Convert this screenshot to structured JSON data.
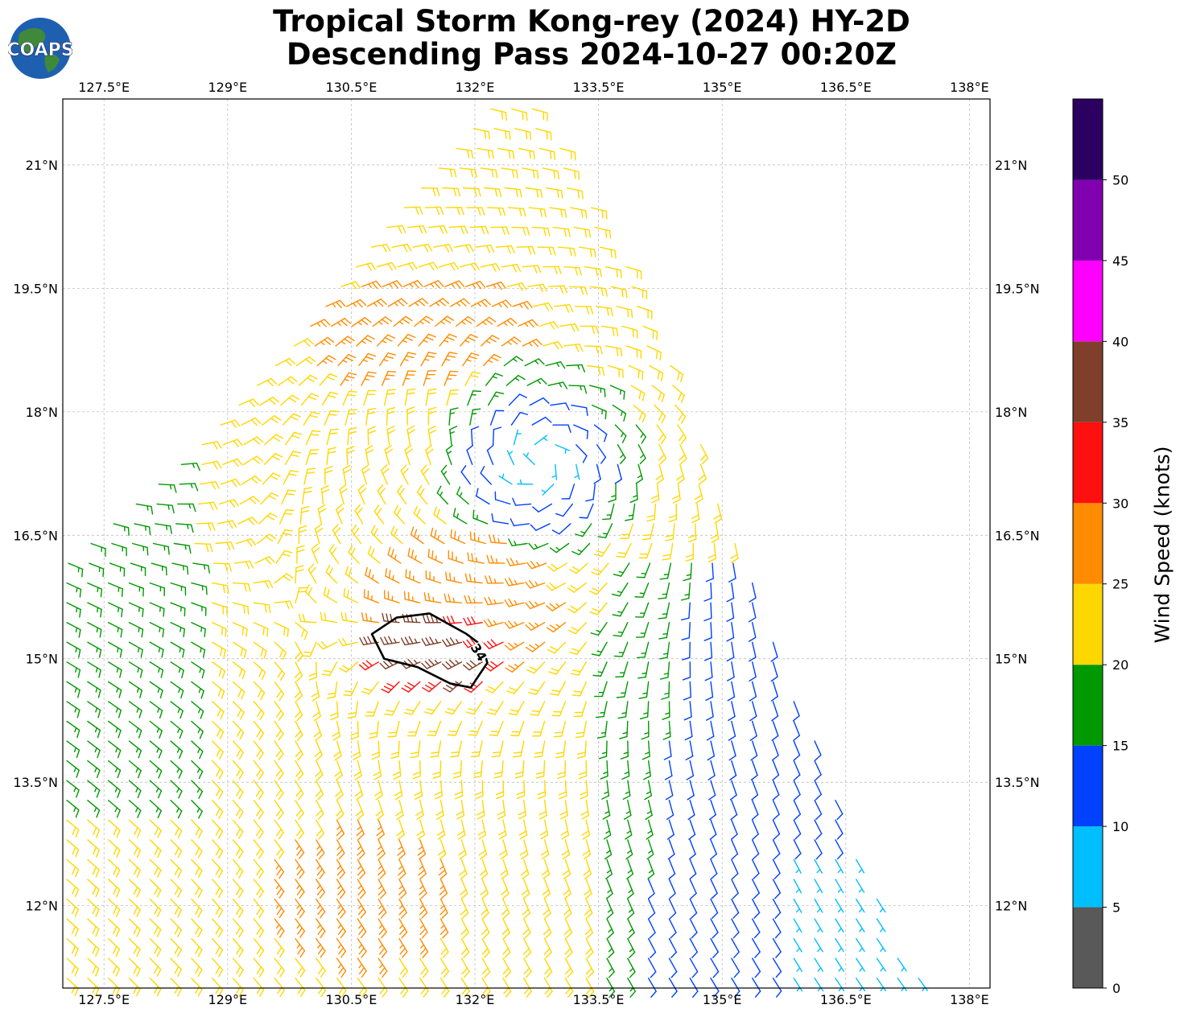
{
  "title": {
    "line1": "Tropical Storm Kong-rey (2024) HY-2D",
    "line2": "Descending Pass 2024-10-27 00:20Z"
  },
  "logo": {
    "text": "COAPS",
    "ocean_color": "#1f5fb0",
    "land_color": "#3f8a3a"
  },
  "map": {
    "lon_range": [
      127.0,
      138.25
    ],
    "lat_range": [
      11.0,
      21.8
    ],
    "lon_ticks": [
      {
        "value": 127.5,
        "label": "127.5°E"
      },
      {
        "value": 129.0,
        "label": "129°E"
      },
      {
        "value": 130.5,
        "label": "130.5°E"
      },
      {
        "value": 132.0,
        "label": "132°E"
      },
      {
        "value": 133.5,
        "label": "133.5°E"
      },
      {
        "value": 135.0,
        "label": "135°E"
      },
      {
        "value": 136.5,
        "label": "136.5°E"
      },
      {
        "value": 138.0,
        "label": "138°E"
      }
    ],
    "lat_ticks": [
      {
        "value": 12.0,
        "label": "12°N"
      },
      {
        "value": 13.5,
        "label": "13.5°N"
      },
      {
        "value": 15.0,
        "label": "15°N"
      },
      {
        "value": 16.5,
        "label": "16.5°N"
      },
      {
        "value": 18.0,
        "label": "18°N"
      },
      {
        "value": 19.5,
        "label": "19.5°N"
      },
      {
        "value": 21.0,
        "label": "21°N"
      }
    ],
    "gridlines": true,
    "storm_center": {
      "lon": 132.8,
      "lat": 17.4
    },
    "swath": {
      "north_edge": {
        "lon_start": 132.3,
        "lat": 21.8
      },
      "west_edge": [
        [
          132.3,
          21.8
        ],
        [
          130.9,
          20.2
        ],
        [
          129.9,
          18.9
        ],
        [
          128.6,
          17.5
        ],
        [
          127.0,
          16.1
        ]
      ],
      "east_edge": [
        [
          132.7,
          21.8
        ],
        [
          134.1,
          19.4
        ],
        [
          135.2,
          16.5
        ],
        [
          136.2,
          13.8
        ],
        [
          137.2,
          11.4
        ],
        [
          137.5,
          11.0
        ]
      ]
    },
    "contour": {
      "level_label": "34",
      "points": [
        [
          131.45,
          15.55
        ],
        [
          131.9,
          15.3
        ],
        [
          132.1,
          15.15
        ],
        [
          132.15,
          14.95
        ],
        [
          131.95,
          14.65
        ],
        [
          131.7,
          14.7
        ],
        [
          131.3,
          14.9
        ],
        [
          130.9,
          15.0
        ],
        [
          130.75,
          15.3
        ],
        [
          131.05,
          15.5
        ]
      ]
    }
  },
  "colorbar": {
    "label": "Wind Speed (knots)",
    "bins": [
      {
        "min": 0,
        "max": 5,
        "color": "#595959"
      },
      {
        "min": 5,
        "max": 10,
        "color": "#00bfff"
      },
      {
        "min": 10,
        "max": 15,
        "color": "#0040ff"
      },
      {
        "min": 15,
        "max": 20,
        "color": "#009900"
      },
      {
        "min": 20,
        "max": 25,
        "color": "#ffd700"
      },
      {
        "min": 25,
        "max": 30,
        "color": "#ff8c00"
      },
      {
        "min": 30,
        "max": 35,
        "color": "#ff1010"
      },
      {
        "min": 35,
        "max": 40,
        "color": "#7f3f2a"
      },
      {
        "min": 40,
        "max": 45,
        "color": "#ff00ff"
      },
      {
        "min": 45,
        "max": 50,
        "color": "#8000b0"
      },
      {
        "min": 50,
        "max": 55,
        "color": "#2a0060"
      }
    ],
    "tick_labels": [
      "0",
      "5",
      "10",
      "15",
      "20",
      "25",
      "30",
      "35",
      "40",
      "45",
      "50"
    ]
  }
}
